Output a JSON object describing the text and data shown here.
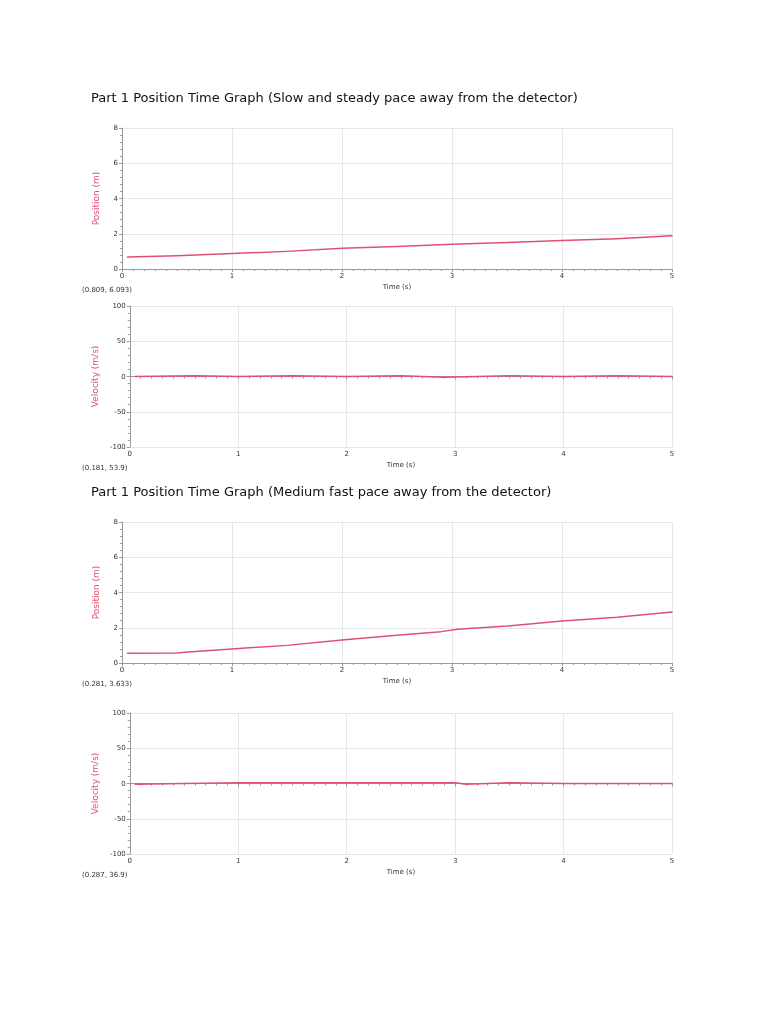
{
  "chart_data": [
    {
      "type": "line",
      "title": "Part 1 Position Time Graph (Slow and steady pace away from the detector)",
      "xlabel": "Time (s)",
      "ylabel": "Position (m)",
      "annotations": [
        "(0.809, 6.093)"
      ],
      "xlim": [
        0,
        5
      ],
      "xticks": [
        0,
        1,
        2,
        3,
        4,
        5
      ],
      "ylim": [
        0,
        8
      ],
      "yticks": [
        0,
        2,
        4,
        6,
        8
      ],
      "grid": true,
      "marker": "none",
      "line_style": "solid",
      "series": [
        {
          "color": "#e0506e",
          "x": [
            0.05,
            0.5,
            1,
            1.5,
            2,
            2.5,
            3,
            3.5,
            4,
            4.5,
            5
          ],
          "values": [
            0.68,
            0.75,
            0.88,
            1.0,
            1.18,
            1.28,
            1.4,
            1.5,
            1.62,
            1.72,
            1.88
          ]
        }
      ]
    },
    {
      "type": "line",
      "xlabel": "Time (s)",
      "ylabel": "Velocity (m/s)",
      "annotations": [
        "(0.181, 53.9)"
      ],
      "xlim": [
        0,
        5
      ],
      "xticks": [
        0,
        1,
        2,
        3,
        4,
        5
      ],
      "ylim": [
        -100,
        100
      ],
      "yticks": [
        -100,
        -50,
        0,
        50,
        100
      ],
      "grid": true,
      "marker": "none",
      "line_style": "solid",
      "series": [
        {
          "color": "#e0506e",
          "x": [
            0.05,
            0.6,
            1,
            1.5,
            2,
            2.5,
            2.9,
            3.2,
            3.5,
            4,
            4.5,
            5
          ],
          "values": [
            0,
            1,
            0,
            1,
            0,
            1,
            -1,
            0,
            1,
            0,
            1,
            0
          ]
        }
      ]
    },
    {
      "type": "line",
      "title": "Part 1 Position Time Graph (Medium fast pace away from the detector)",
      "xlabel": "Time (s)",
      "ylabel": "Position (m)",
      "annotations": [
        "(0.281, 3.633)"
      ],
      "xlim": [
        0,
        5
      ],
      "xticks": [
        0,
        1,
        2,
        3,
        4,
        5
      ],
      "ylim": [
        0,
        8
      ],
      "yticks": [
        0,
        2,
        4,
        6,
        8
      ],
      "grid": true,
      "marker": "none",
      "line_style": "solid",
      "series": [
        {
          "color": "#e0506e",
          "x": [
            0.05,
            0.5,
            0.6,
            1,
            1.5,
            2,
            2.5,
            2.9,
            3.05,
            3.5,
            4,
            4.5,
            5
          ],
          "values": [
            0.55,
            0.57,
            0.62,
            0.8,
            1.0,
            1.3,
            1.58,
            1.78,
            1.92,
            2.1,
            2.38,
            2.6,
            2.9
          ]
        }
      ]
    },
    {
      "type": "line",
      "xlabel": "Time (s)",
      "ylabel": "Velocity (m/s)",
      "annotations": [
        "(0.287, 36.9)"
      ],
      "xlim": [
        0,
        5
      ],
      "xticks": [
        0,
        1,
        2,
        3,
        4,
        5
      ],
      "ylim": [
        -100,
        100
      ],
      "yticks": [
        -100,
        -50,
        0,
        50,
        100
      ],
      "grid": true,
      "marker": "none",
      "line_style": "solid",
      "series": [
        {
          "color": "#e0506e",
          "x": [
            0.05,
            0.5,
            1,
            2,
            3,
            3.1,
            3.5,
            4,
            5
          ],
          "values": [
            -1,
            0,
            1,
            1,
            1,
            -1,
            1,
            0,
            0
          ]
        }
      ]
    }
  ]
}
